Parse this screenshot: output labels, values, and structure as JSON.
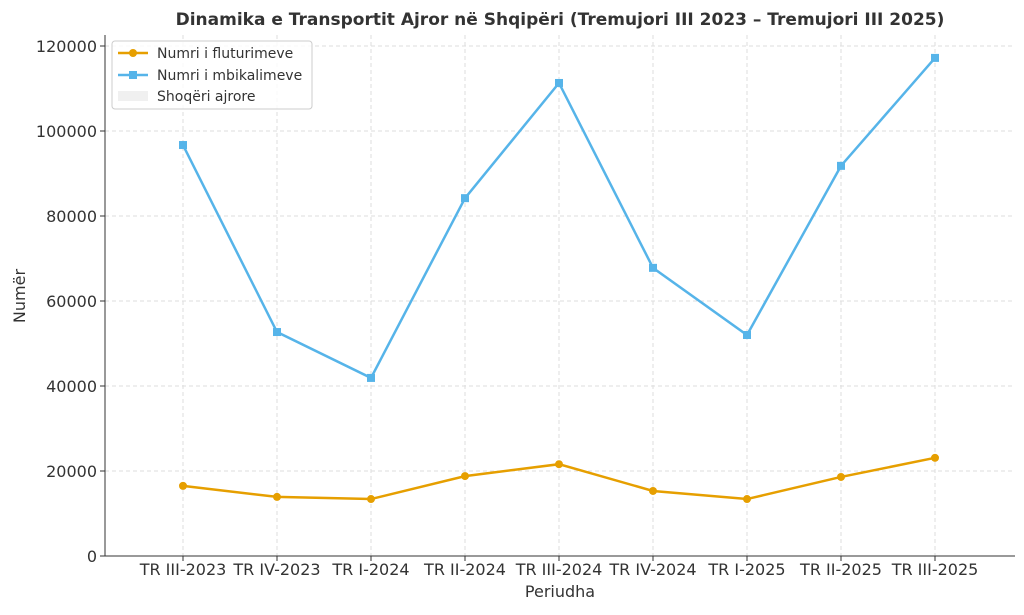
{
  "chart_data": {
    "type": "line",
    "title": "Dinamika e Transportit Ajror në Shqipëri (Tremujori III 2023 – Tremujori III 2025)",
    "xlabel": "Periudha",
    "ylabel": "Numër",
    "ylim": [
      0,
      120000
    ],
    "yticks": [
      0,
      20000,
      40000,
      60000,
      80000,
      100000,
      120000
    ],
    "grid": true,
    "legend_position": "top-left",
    "categories": [
      "TR III-2023",
      "TR IV-2023",
      "TR I-2024",
      "TR II-2024",
      "TR III-2024",
      "TR IV-2024",
      "TR I-2025",
      "TR II-2025",
      "TR III-2025"
    ],
    "series": [
      {
        "name": "Numri i fluturimeve",
        "color": "#E69F00",
        "marker": "circle",
        "values": [
          16500,
          13900,
          13400,
          18800,
          21600,
          15300,
          13400,
          18600,
          23100
        ]
      },
      {
        "name": "Numri i mbikalimeve",
        "color": "#56B4E9",
        "marker": "square",
        "values": [
          96700,
          52700,
          41900,
          84200,
          111300,
          67800,
          52000,
          91800,
          117200
        ]
      }
    ],
    "extra_legend": {
      "name": "Shoqëri ajrore",
      "color": "#f0f0f0"
    }
  }
}
